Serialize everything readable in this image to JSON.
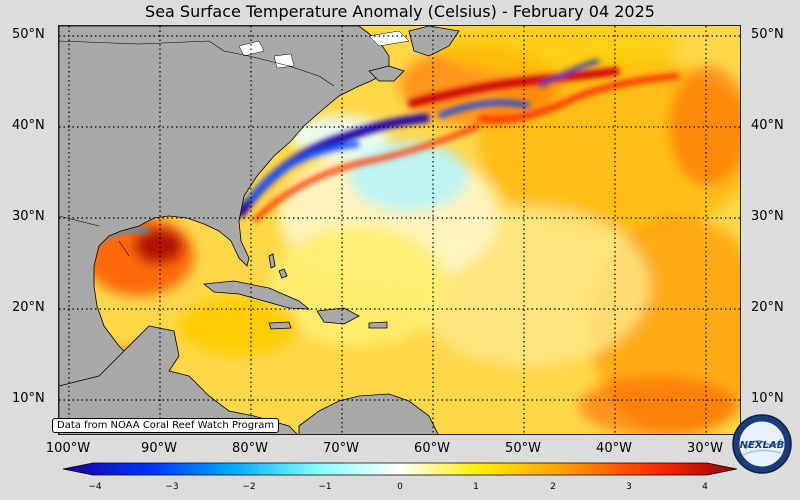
{
  "title": "Sea Surface Temperature Anomaly (Celsius) - February 04 2025",
  "lat_labels": [
    "50°N",
    "40°N",
    "30°N",
    "20°N",
    "10°N"
  ],
  "lon_labels": [
    "100°W",
    "90°W",
    "80°W",
    "70°W",
    "60°W",
    "50°W",
    "40°W",
    "30°W"
  ],
  "credit": "Data from NOAA Coral Reef Watch Program",
  "colorbar": {
    "ticks": [
      "−4",
      "−3",
      "−2",
      "−1",
      "0",
      "1",
      "2",
      "3",
      "4"
    ],
    "range": [
      -4,
      4
    ],
    "colors": [
      "#1a0099",
      "#0033ff",
      "#00aaff",
      "#88ffff",
      "#ffffff",
      "#ffee00",
      "#ff9900",
      "#ff2a00",
      "#990000"
    ]
  },
  "logo": {
    "text": "NEXLAB"
  },
  "colors": {
    "land": "#a9a9a9",
    "ocean_base": "#ffd84a",
    "background": "#dcdcdc"
  }
}
